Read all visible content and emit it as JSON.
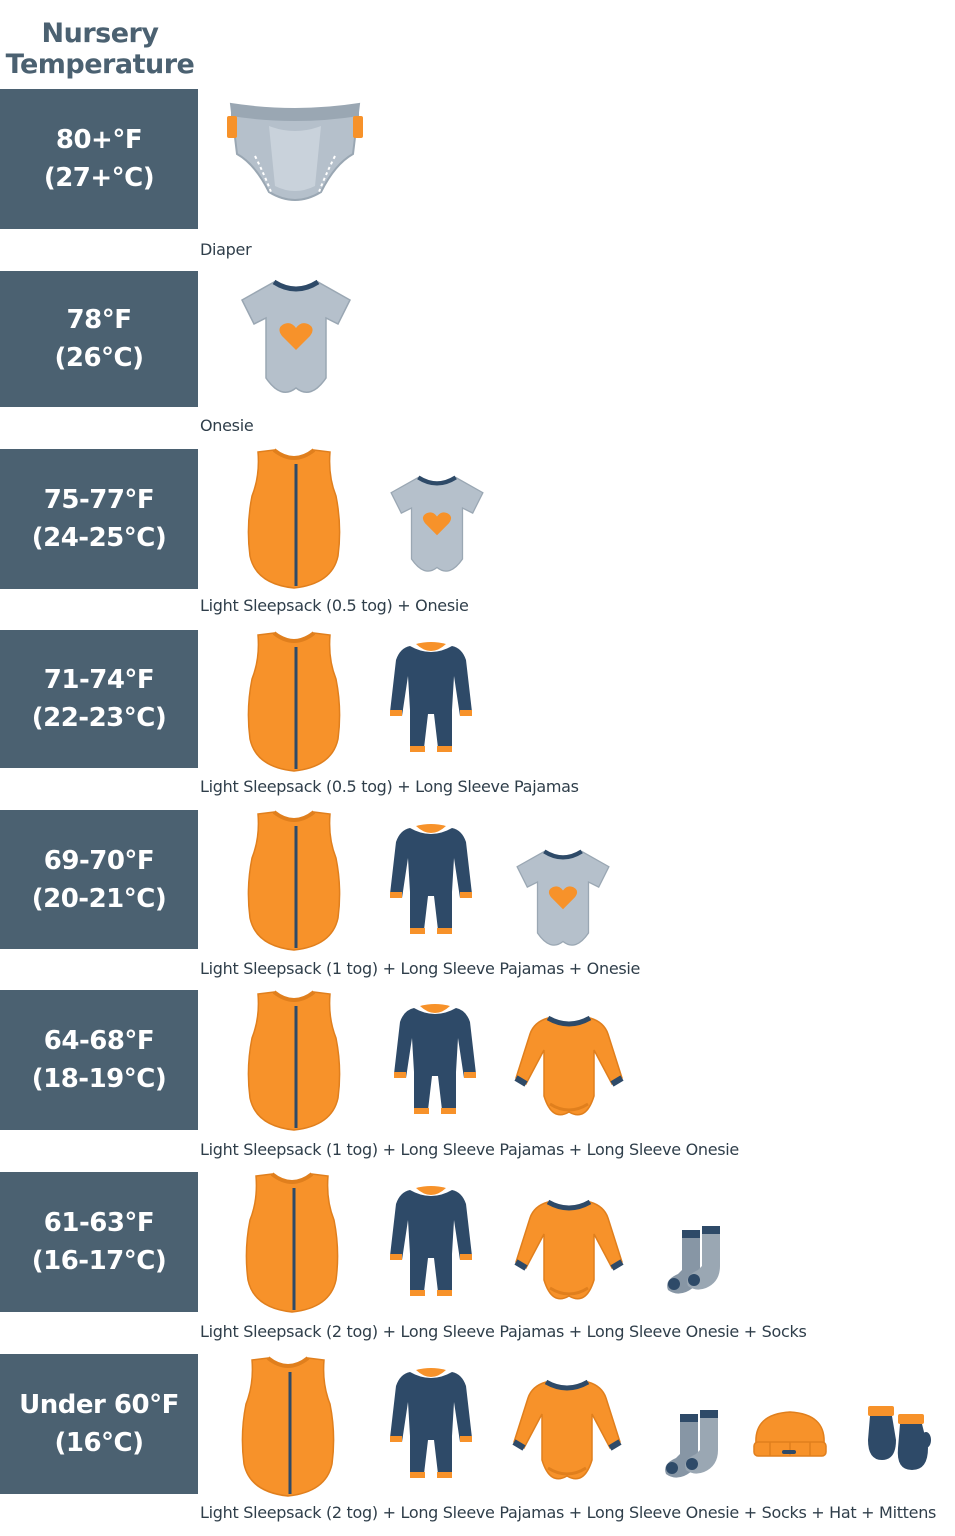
{
  "title": {
    "line1": "Nursery",
    "line2": "Temperature"
  },
  "colors": {
    "slate": "#4b6171",
    "orange": "#f7922a",
    "navy": "#2e4a68",
    "gray": "#b5c0cb"
  },
  "rows": [
    {
      "temp_f": "80+°F",
      "temp_c": "(27+°C)",
      "caption": "Diaper",
      "items": [
        "diaper-icon"
      ]
    },
    {
      "temp_f": "78°F",
      "temp_c": "(26°C)",
      "caption": "Onesie",
      "items": [
        "onesie-icon"
      ]
    },
    {
      "temp_f": "75-77°F",
      "temp_c": "(24-25°C)",
      "caption": "Light Sleepsack (0.5 tog) + Onesie",
      "items": [
        "sleepsack-icon",
        "onesie-icon"
      ]
    },
    {
      "temp_f": "71-74°F",
      "temp_c": "(22-23°C)",
      "caption": "Light Sleepsack (0.5 tog) + Long Sleeve Pajamas",
      "items": [
        "sleepsack-icon",
        "pajamas-icon"
      ]
    },
    {
      "temp_f": "69-70°F",
      "temp_c": "(20-21°C)",
      "caption": "Light Sleepsack (1 tog) + Long Sleeve Pajamas + Onesie",
      "items": [
        "sleepsack-icon",
        "pajamas-icon",
        "onesie-icon"
      ]
    },
    {
      "temp_f": "64-68°F",
      "temp_c": "(18-19°C)",
      "caption": "Light Sleepsack (1 tog) + Long Sleeve Pajamas + Long Sleeve Onesie",
      "items": [
        "sleepsack-icon",
        "pajamas-icon",
        "long-sleeve-onesie-icon"
      ]
    },
    {
      "temp_f": "61-63°F",
      "temp_c": "(16-17°C)",
      "caption": "Light Sleepsack (2 tog) + Long Sleeve Pajamas + Long Sleeve Onesie + Socks",
      "items": [
        "sleepsack-icon",
        "pajamas-icon",
        "long-sleeve-onesie-icon",
        "socks-icon"
      ]
    },
    {
      "temp_f": "Under 60°F",
      "temp_c": "(16°C)",
      "caption": "Light Sleepsack (2 tog) + Long Sleeve Pajamas + Long Sleeve Onesie  + Socks + Hat + Mittens",
      "items": [
        "sleepsack-icon",
        "pajamas-icon",
        "long-sleeve-onesie-icon",
        "socks-icon",
        "hat-icon",
        "mittens-icon"
      ]
    }
  ]
}
